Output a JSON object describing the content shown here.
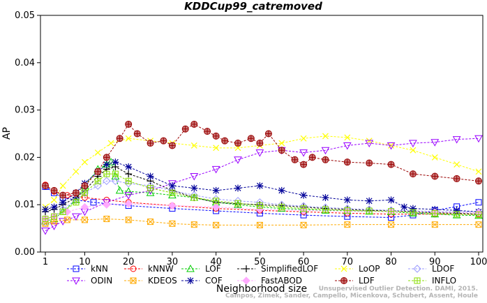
{
  "chart_data": {
    "type": "line",
    "title": "KDDCup99_catremoved",
    "xlabel": "Neighborhood size",
    "ylabel": "AP",
    "xlim": [
      1,
      100
    ],
    "ylim": [
      0,
      0.05
    ],
    "xticks": [
      1,
      10,
      20,
      30,
      40,
      50,
      60,
      70,
      80,
      90,
      100
    ],
    "yticks": [
      "0.00",
      "0.01",
      "0.02",
      "0.03",
      "0.04",
      "0.05"
    ],
    "grid": false,
    "legend_position": "bottom",
    "watermark": {
      "line1": "Unsupervised Outlier Detection. DAMI, 2015.",
      "line2": "Campos, Zimek, Sander, Campello, Micenkova, Schubert, Assent, Houle"
    },
    "series": [
      {
        "name": "kNN",
        "color": "#0000ff",
        "marker": "square",
        "points": [
          [
            1,
            0.0138
          ],
          [
            3,
            0.0125
          ],
          [
            5,
            0.0115
          ],
          [
            8,
            0.011
          ],
          [
            12,
            0.0105
          ],
          [
            20,
            0.0098
          ],
          [
            30,
            0.0092
          ],
          [
            40,
            0.0087
          ],
          [
            50,
            0.0082
          ],
          [
            60,
            0.0078
          ],
          [
            70,
            0.0075
          ],
          [
            80,
            0.0073
          ],
          [
            85,
            0.0078
          ],
          [
            90,
            0.0088
          ],
          [
            95,
            0.0096
          ],
          [
            100,
            0.0105
          ]
        ]
      },
      {
        "name": "kNNW",
        "color": "#ff0000",
        "marker": "circle",
        "points": [
          [
            1,
            0.0142
          ],
          [
            3,
            0.0128
          ],
          [
            6,
            0.012
          ],
          [
            10,
            0.0115
          ],
          [
            15,
            0.011
          ],
          [
            20,
            0.0105
          ],
          [
            30,
            0.0098
          ],
          [
            40,
            0.0092
          ],
          [
            50,
            0.0088
          ],
          [
            60,
            0.0085
          ],
          [
            70,
            0.0082
          ],
          [
            80,
            0.008
          ],
          [
            90,
            0.008
          ],
          [
            100,
            0.008
          ]
        ]
      },
      {
        "name": "LOF",
        "color": "#00cc00",
        "marker": "triangle-up",
        "points": [
          [
            1,
            0.0065
          ],
          [
            3,
            0.007
          ],
          [
            5,
            0.0085
          ],
          [
            8,
            0.011
          ],
          [
            10,
            0.014
          ],
          [
            13,
            0.0175
          ],
          [
            15,
            0.0185
          ],
          [
            16,
            0.019
          ],
          [
            17,
            0.016
          ],
          [
            18,
            0.013
          ],
          [
            20,
            0.0128
          ],
          [
            25,
            0.0125
          ],
          [
            30,
            0.012
          ],
          [
            35,
            0.0115
          ],
          [
            40,
            0.0105
          ],
          [
            45,
            0.01
          ],
          [
            50,
            0.0095
          ],
          [
            55,
            0.0092
          ],
          [
            60,
            0.009
          ],
          [
            65,
            0.0088
          ],
          [
            70,
            0.0087
          ],
          [
            75,
            0.0086
          ],
          [
            80,
            0.0085
          ],
          [
            85,
            0.0082
          ],
          [
            90,
            0.008
          ],
          [
            95,
            0.0078
          ],
          [
            100,
            0.0077
          ]
        ]
      },
      {
        "name": "SimplifiedLOF",
        "color": "#000000",
        "marker": "plus",
        "points": [
          [
            1,
            0.0085
          ],
          [
            3,
            0.009
          ],
          [
            5,
            0.01
          ],
          [
            8,
            0.0115
          ],
          [
            10,
            0.013
          ],
          [
            13,
            0.016
          ],
          [
            15,
            0.0175
          ],
          [
            17,
            0.018
          ],
          [
            20,
            0.0165
          ],
          [
            25,
            0.015
          ],
          [
            30,
            0.013
          ],
          [
            35,
            0.0115
          ],
          [
            40,
            0.0105
          ],
          [
            45,
            0.0102
          ],
          [
            50,
            0.01
          ],
          [
            55,
            0.0098
          ],
          [
            60,
            0.0095
          ],
          [
            65,
            0.0092
          ],
          [
            70,
            0.009
          ],
          [
            75,
            0.0088
          ],
          [
            80,
            0.0088
          ],
          [
            85,
            0.0085
          ],
          [
            90,
            0.0083
          ],
          [
            95,
            0.0082
          ],
          [
            100,
            0.008
          ]
        ]
      },
      {
        "name": "LoOP",
        "color": "#ffff00",
        "marker": "x",
        "points": [
          [
            1,
            0.0095
          ],
          [
            3,
            0.011
          ],
          [
            5,
            0.014
          ],
          [
            8,
            0.017
          ],
          [
            10,
            0.019
          ],
          [
            13,
            0.021
          ],
          [
            16,
            0.023
          ],
          [
            20,
            0.024
          ],
          [
            25,
            0.0235
          ],
          [
            30,
            0.023
          ],
          [
            35,
            0.0225
          ],
          [
            40,
            0.022
          ],
          [
            45,
            0.022
          ],
          [
            50,
            0.0225
          ],
          [
            55,
            0.023
          ],
          [
            60,
            0.024
          ],
          [
            65,
            0.0245
          ],
          [
            70,
            0.0242
          ],
          [
            75,
            0.0235
          ],
          [
            80,
            0.0225
          ],
          [
            85,
            0.0215
          ],
          [
            90,
            0.02
          ],
          [
            95,
            0.0185
          ],
          [
            100,
            0.017
          ]
        ]
      },
      {
        "name": "LDOF",
        "color": "#9999ff",
        "marker": "diamond",
        "points": [
          [
            1,
            0.0062
          ],
          [
            3,
            0.0075
          ],
          [
            5,
            0.009
          ],
          [
            8,
            0.011
          ],
          [
            10,
            0.0125
          ],
          [
            13,
            0.014
          ],
          [
            15,
            0.015
          ],
          [
            17,
            0.015
          ],
          [
            20,
            0.0145
          ],
          [
            25,
            0.014
          ],
          [
            30,
            0.013
          ],
          [
            35,
            0.012
          ],
          [
            40,
            0.0112
          ],
          [
            45,
            0.0108
          ],
          [
            50,
            0.0105
          ],
          [
            55,
            0.01
          ],
          [
            60,
            0.0097
          ],
          [
            65,
            0.0094
          ],
          [
            70,
            0.0092
          ],
          [
            75,
            0.009
          ],
          [
            80,
            0.0088
          ],
          [
            85,
            0.0087
          ],
          [
            90,
            0.0086
          ],
          [
            95,
            0.0085
          ],
          [
            100,
            0.0085
          ]
        ]
      },
      {
        "name": "ODIN",
        "color": "#9900ff",
        "marker": "triangle-down",
        "points": [
          [
            1,
            0.0045
          ],
          [
            3,
            0.0055
          ],
          [
            5,
            0.0065
          ],
          [
            8,
            0.0075
          ],
          [
            10,
            0.0085
          ],
          [
            15,
            0.0105
          ],
          [
            20,
            0.012
          ],
          [
            25,
            0.013
          ],
          [
            30,
            0.0145
          ],
          [
            35,
            0.016
          ],
          [
            40,
            0.0175
          ],
          [
            45,
            0.0195
          ],
          [
            50,
            0.021
          ],
          [
            55,
            0.0215
          ],
          [
            60,
            0.021
          ],
          [
            65,
            0.0215
          ],
          [
            70,
            0.0225
          ],
          [
            75,
            0.023
          ],
          [
            80,
            0.0225
          ],
          [
            85,
            0.023
          ],
          [
            90,
            0.0232
          ],
          [
            95,
            0.0238
          ],
          [
            100,
            0.024
          ]
        ]
      },
      {
        "name": "KDEOS",
        "color": "#ffaa00",
        "marker": "square-x",
        "points": [
          [
            1,
            0.006
          ],
          [
            3,
            0.0065
          ],
          [
            6,
            0.0068
          ],
          [
            10,
            0.0068
          ],
          [
            15,
            0.007
          ],
          [
            20,
            0.0068
          ],
          [
            25,
            0.0064
          ],
          [
            30,
            0.006
          ],
          [
            35,
            0.0058
          ],
          [
            40,
            0.0057
          ],
          [
            50,
            0.0057
          ],
          [
            60,
            0.0057
          ],
          [
            70,
            0.0058
          ],
          [
            80,
            0.0058
          ],
          [
            90,
            0.0058
          ],
          [
            100,
            0.0058
          ]
        ]
      },
      {
        "name": "COF",
        "color": "#000099",
        "marker": "asterisk",
        "points": [
          [
            1,
            0.009
          ],
          [
            3,
            0.0095
          ],
          [
            5,
            0.0105
          ],
          [
            8,
            0.0125
          ],
          [
            10,
            0.0145
          ],
          [
            13,
            0.017
          ],
          [
            15,
            0.0185
          ],
          [
            17,
            0.019
          ],
          [
            20,
            0.018
          ],
          [
            25,
            0.016
          ],
          [
            30,
            0.014
          ],
          [
            35,
            0.0135
          ],
          [
            40,
            0.013
          ],
          [
            45,
            0.0135
          ],
          [
            50,
            0.014
          ],
          [
            55,
            0.013
          ],
          [
            60,
            0.012
          ],
          [
            65,
            0.0115
          ],
          [
            70,
            0.011
          ],
          [
            75,
            0.0108
          ],
          [
            80,
            0.011
          ],
          [
            83,
            0.0095
          ],
          [
            85,
            0.0092
          ],
          [
            90,
            0.009
          ],
          [
            95,
            0.0088
          ],
          [
            100,
            0.0085
          ]
        ]
      },
      {
        "name": "FastABOD",
        "color": "#ffaaff",
        "marker": "diamond-filled",
        "points": [
          [
            1,
            0.007
          ],
          [
            3,
            0.0075
          ],
          [
            6,
            0.0085
          ],
          [
            10,
            0.0095
          ],
          [
            15,
            0.01
          ],
          [
            20,
            0.0102
          ],
          [
            30,
            0.0098
          ],
          [
            40,
            0.0095
          ],
          [
            50,
            0.009
          ],
          [
            60,
            0.0088
          ],
          [
            70,
            0.0086
          ],
          [
            80,
            0.0085
          ],
          [
            90,
            0.0084
          ],
          [
            100,
            0.0083
          ]
        ]
      },
      {
        "name": "LDF",
        "color": "#990000",
        "marker": "circle-plus",
        "points": [
          [
            1,
            0.014
          ],
          [
            3,
            0.013
          ],
          [
            5,
            0.012
          ],
          [
            8,
            0.0125
          ],
          [
            10,
            0.014
          ],
          [
            13,
            0.017
          ],
          [
            15,
            0.02
          ],
          [
            18,
            0.024
          ],
          [
            20,
            0.027
          ],
          [
            22,
            0.025
          ],
          [
            25,
            0.023
          ],
          [
            28,
            0.0235
          ],
          [
            30,
            0.0225
          ],
          [
            33,
            0.026
          ],
          [
            35,
            0.027
          ],
          [
            38,
            0.0255
          ],
          [
            40,
            0.0245
          ],
          [
            42,
            0.0235
          ],
          [
            45,
            0.023
          ],
          [
            48,
            0.024
          ],
          [
            50,
            0.023
          ],
          [
            52,
            0.025
          ],
          [
            55,
            0.0215
          ],
          [
            58,
            0.0195
          ],
          [
            60,
            0.0185
          ],
          [
            62,
            0.02
          ],
          [
            65,
            0.0195
          ],
          [
            70,
            0.019
          ],
          [
            75,
            0.0188
          ],
          [
            80,
            0.0185
          ],
          [
            85,
            0.0165
          ],
          [
            90,
            0.016
          ],
          [
            95,
            0.0155
          ],
          [
            100,
            0.015
          ]
        ]
      },
      {
        "name": "INFLO",
        "color": "#88dd00",
        "marker": "square-star",
        "points": [
          [
            1,
            0.007
          ],
          [
            3,
            0.0075
          ],
          [
            5,
            0.0085
          ],
          [
            8,
            0.0105
          ],
          [
            10,
            0.0125
          ],
          [
            13,
            0.015
          ],
          [
            15,
            0.0165
          ],
          [
            17,
            0.0165
          ],
          [
            20,
            0.015
          ],
          [
            25,
            0.0135
          ],
          [
            30,
            0.0125
          ],
          [
            35,
            0.0115
          ],
          [
            40,
            0.0108
          ],
          [
            45,
            0.0103
          ],
          [
            50,
            0.0098
          ],
          [
            55,
            0.0095
          ],
          [
            60,
            0.0092
          ],
          [
            65,
            0.009
          ],
          [
            70,
            0.0088
          ],
          [
            75,
            0.0087
          ],
          [
            80,
            0.0086
          ],
          [
            85,
            0.0084
          ],
          [
            90,
            0.0082
          ],
          [
            95,
            0.008
          ],
          [
            100,
            0.0079
          ]
        ]
      }
    ],
    "legend_layout": [
      [
        "kNN",
        "kNNW",
        "LOF",
        "SimplifiedLOF",
        "LoOP",
        "LDOF"
      ],
      [
        "ODIN",
        "KDEOS",
        "COF",
        "FastABOD",
        "LDF",
        "INFLO"
      ]
    ]
  }
}
